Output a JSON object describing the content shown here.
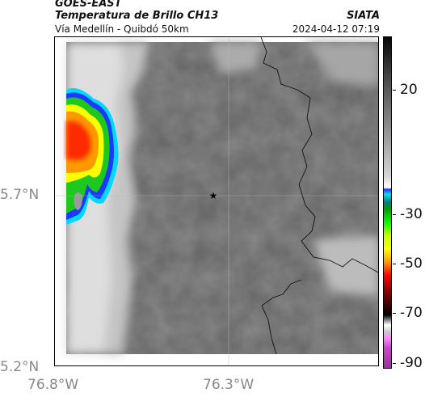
{
  "header": {
    "satellite": "GOES-EAST",
    "product": "Temperatura de Brillo CH13",
    "org": "SIATA",
    "route": "Vía Medellín - Quibdó 50km",
    "datetime": "2024-04-12 07:19"
  },
  "map": {
    "lat_labels": [
      "5.7°N",
      "5.2°N"
    ],
    "lon_labels": [
      "76.8°W",
      "76.3°W"
    ],
    "marker_icon": "star-marker-icon"
  },
  "colorbar": {
    "labels": [
      "20",
      "-30",
      "-50",
      "-70",
      "-90"
    ],
    "palette": {
      "cold_top": "#050505",
      "warm_gray": "#b0b0b0",
      "cyan": "#00d0ff",
      "green": "#00c000",
      "yellow": "#ffff00",
      "red": "#ff0000",
      "magenta": "#cc44cc"
    }
  }
}
